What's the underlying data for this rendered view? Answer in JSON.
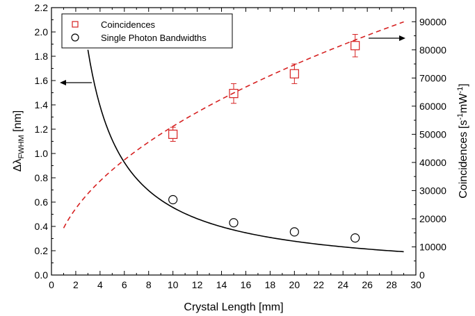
{
  "chart_data": {
    "type": "scatter",
    "xlabel": "Crystal Length [mm]",
    "ylabel_left_main": "Δλ",
    "ylabel_left_sub": "FWHM",
    "ylabel_left_unit": " [nm]",
    "ylabel_right_main": "Coincidences [s",
    "ylabel_right_sup1": "-1",
    "ylabel_right_mid": "mW",
    "ylabel_right_sup2": "-1",
    "ylabel_right_end": "]",
    "xlim": [
      0,
      30
    ],
    "ylim_left": [
      0.0,
      2.2
    ],
    "ylim_right": [
      0,
      95000
    ],
    "x_ticks": [
      "0",
      "2",
      "4",
      "6",
      "8",
      "10",
      "12",
      "14",
      "16",
      "18",
      "20",
      "22",
      "24",
      "26",
      "28",
      "30"
    ],
    "y_left_ticks": [
      "0.0",
      "0.2",
      "0.4",
      "0.6",
      "0.8",
      "1.0",
      "1.2",
      "1.4",
      "1.6",
      "1.8",
      "2.0",
      "2.2"
    ],
    "y_right_ticks": [
      "0",
      "10000",
      "20000",
      "30000",
      "40000",
      "50000",
      "60000",
      "70000",
      "80000",
      "90000"
    ],
    "legend": {
      "position": "top-left",
      "entries": [
        "Coincidences",
        "Single Photon Bandwidths"
      ]
    },
    "series": [
      {
        "name": "Coincidences",
        "axis": "right",
        "marker": "square",
        "color": "#d62020",
        "x": [
          10,
          15,
          20,
          25
        ],
        "y": [
          50000,
          64500,
          71500,
          81500
        ],
        "err": [
          2500,
          3500,
          3500,
          4000
        ]
      },
      {
        "name": "Single Photon Bandwidths",
        "axis": "left",
        "marker": "circle",
        "color": "#000000",
        "x": [
          10,
          15,
          20,
          25
        ],
        "y": [
          0.62,
          0.43,
          0.355,
          0.305
        ]
      }
    ],
    "fits": [
      {
        "axis": "left",
        "style": "solid",
        "color": "#000000",
        "k": 5.56,
        "x_range": [
          3,
          29
        ]
      },
      {
        "axis": "right",
        "style": "dashed",
        "color": "#d62020",
        "k": 16700,
        "x_range": [
          1,
          29
        ]
      }
    ],
    "arrows": [
      {
        "axis": "left",
        "direction": "left"
      },
      {
        "axis": "right",
        "direction": "right"
      }
    ]
  }
}
